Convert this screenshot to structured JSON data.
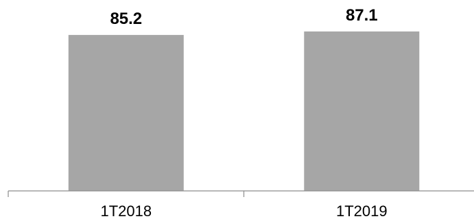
{
  "chart_data": {
    "type": "bar",
    "categories": [
      "1T2018",
      "1T2019"
    ],
    "values": [
      85.2,
      87.1
    ],
    "data_labels": [
      "85.2",
      "87.1"
    ],
    "title": "",
    "xlabel": "",
    "ylabel": "",
    "ylim": [
      0,
      87.1
    ],
    "grid": false,
    "legend": "none",
    "colors": {
      "bar": "#a6a6a6",
      "axis": "#8c8c8c",
      "text": "#000000"
    }
  }
}
